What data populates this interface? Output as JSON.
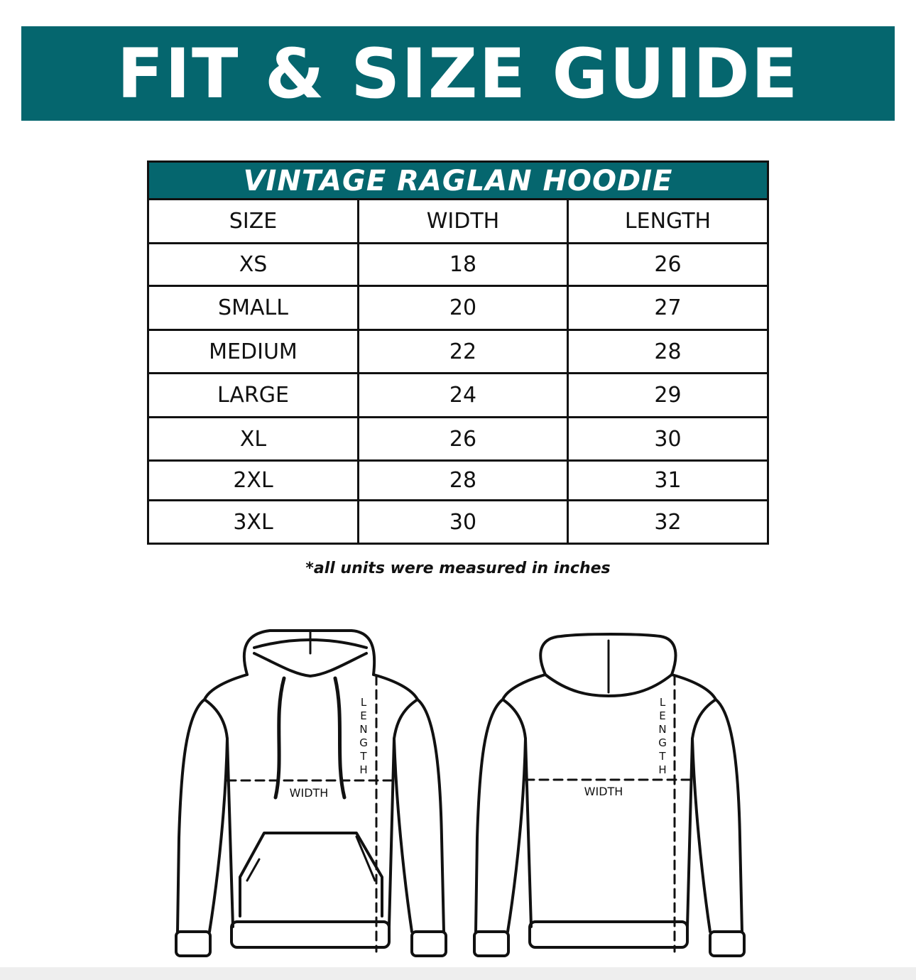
{
  "banner": {
    "title": "FIT & SIZE GUIDE"
  },
  "brand_color": "#05666e",
  "table": {
    "title": "VINTAGE RAGLAN HOODIE",
    "headers": [
      "SIZE",
      "WIDTH",
      "LENGTH"
    ],
    "rows": [
      [
        "XS",
        "18",
        "26"
      ],
      [
        "SMALL",
        "20",
        "27"
      ],
      [
        "MEDIUM",
        "22",
        "28"
      ],
      [
        "LARGE",
        "24",
        "29"
      ],
      [
        "XL",
        "26",
        "30"
      ],
      [
        "2XL",
        "28",
        "31"
      ],
      [
        "3XL",
        "30",
        "32"
      ]
    ]
  },
  "note": "*all units were measured in inches",
  "diagrams": {
    "front": {
      "width_label": "WIDTH",
      "length_label": "LENGTH"
    },
    "back": {
      "width_label": "WIDTH",
      "length_label": "LENGTH"
    }
  }
}
